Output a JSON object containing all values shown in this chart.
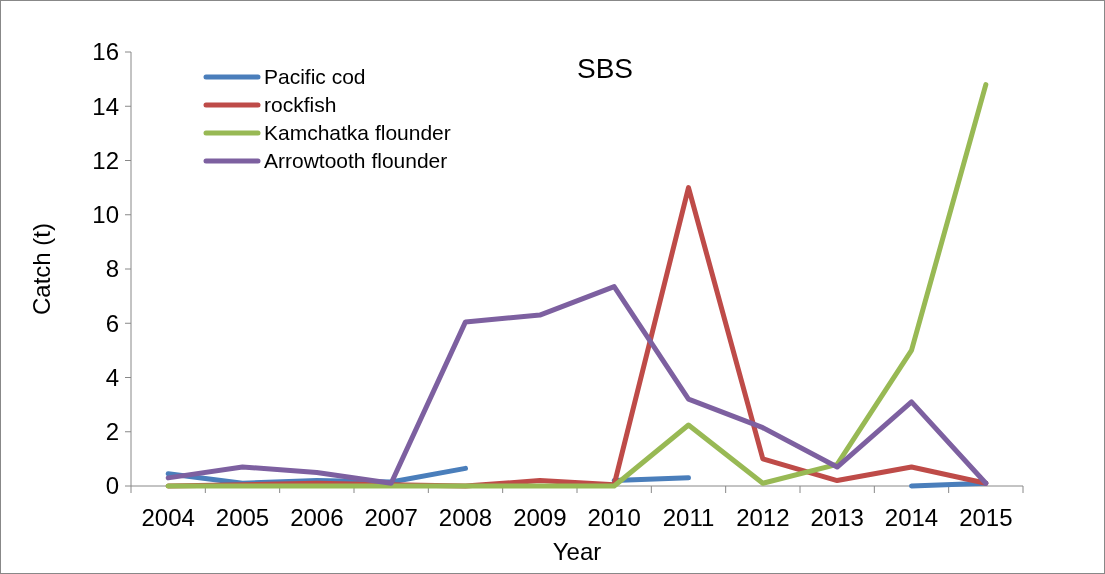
{
  "chart_data": {
    "type": "line",
    "title": "SBS",
    "xlabel": "Year",
    "ylabel": "Catch (t)",
    "categories": [
      "2004",
      "2005",
      "2006",
      "2007",
      "2008",
      "2009",
      "2010",
      "2011",
      "2012",
      "2013",
      "2014",
      "2015"
    ],
    "series": [
      {
        "name": "Pacific cod",
        "color": "#4a7ebb",
        "values": [
          0.45,
          0.1,
          0.2,
          0.15,
          0.65,
          null,
          0.2,
          0.3,
          null,
          null,
          0,
          0.1
        ]
      },
      {
        "name": "rockfish",
        "color": "#be4b48",
        "values": [
          0,
          0.05,
          0.1,
          0.05,
          0,
          0.2,
          0.05,
          11,
          1.0,
          0.2,
          0.7,
          0.1
        ]
      },
      {
        "name": "Kamchatka flounder",
        "color": "#98b954",
        "values": [
          0,
          0,
          0,
          0,
          0,
          0,
          0,
          2.25,
          0.1,
          0.8,
          5.0,
          14.8
        ]
      },
      {
        "name": "Arrowtooth flounder",
        "color": "#7d60a0",
        "values": [
          0.3,
          0.7,
          0.5,
          0.1,
          6.05,
          6.3,
          7.35,
          3.2,
          2.15,
          0.7,
          3.1,
          0.1
        ]
      }
    ],
    "ylim": [
      0,
      16
    ],
    "yticks": [
      0,
      2,
      4,
      6,
      8,
      10,
      12,
      14,
      16
    ],
    "grid": false,
    "legend": "top left",
    "marker": "none",
    "line_style": "solid"
  }
}
